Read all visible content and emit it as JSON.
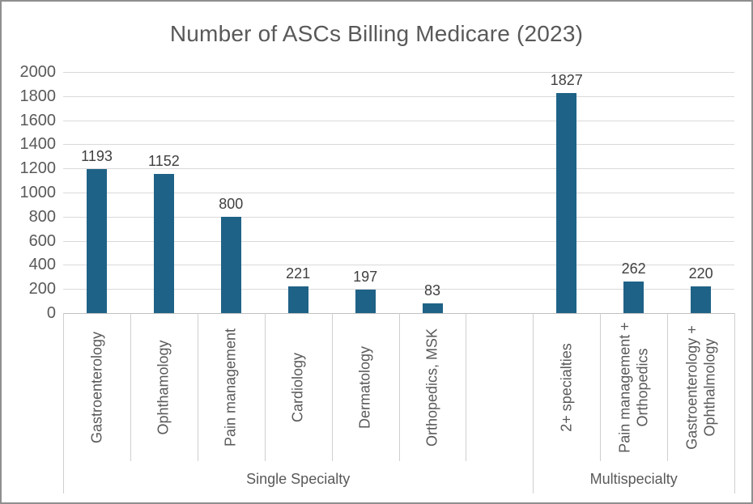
{
  "chart_data": {
    "type": "bar",
    "title": "Number of ASCs Billing Medicare (2023)",
    "xlabel": "",
    "ylabel": "",
    "ylim": [
      0,
      2000
    ],
    "ytick_step": 200,
    "yticks": [
      0,
      200,
      400,
      600,
      800,
      1000,
      1200,
      1400,
      1600,
      1800,
      2000
    ],
    "grid": true,
    "legend": "none",
    "data_labels": true,
    "groups": [
      {
        "label": "Single Specialty",
        "categories": [
          "Gastroenterology",
          "Ophthamology",
          "Pain management",
          "Cardiology",
          "Dermatology",
          "Orthopedics, MSK"
        ],
        "values": [
          1193,
          1152,
          800,
          221,
          197,
          83
        ]
      },
      {
        "label": "Multispecialty",
        "categories": [
          "2+ specialties",
          "Pain management +\nOrthopedics",
          "Gastroenterology +\nOphthalmology"
        ],
        "values": [
          1827,
          262,
          220
        ]
      }
    ]
  },
  "colors": {
    "bar": "#1f6287",
    "title_text": "#595959",
    "axis_text": "#595959",
    "data_label_text": "#404040",
    "gridline": "#d9d9d9",
    "axis_line": "#bfbfbf",
    "separator": "#cfcfcf",
    "frame_border": "#8f8f8f",
    "background": "#ffffff"
  }
}
